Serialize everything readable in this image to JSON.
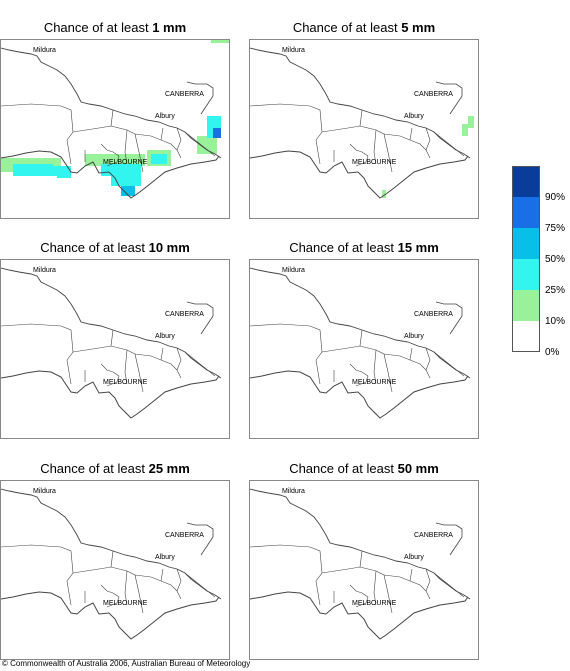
{
  "panels": [
    {
      "prefix": "Chance of at least ",
      "amount": "1 mm"
    },
    {
      "prefix": "Chance of at least ",
      "amount": "5 mm"
    },
    {
      "prefix": "Chance of at least ",
      "amount": "10 mm"
    },
    {
      "prefix": "Chance of at least ",
      "amount": "15 mm"
    },
    {
      "prefix": "Chance of at least ",
      "amount": "25 mm"
    },
    {
      "prefix": "Chance of at least ",
      "amount": "50 mm"
    }
  ],
  "places": {
    "mildura": "Mildura",
    "canberra": "CANBERRA",
    "albury": "Albury",
    "melbourne": "MELBOURNE"
  },
  "legend": {
    "ticks": [
      "90%",
      "75%",
      "50%",
      "25%",
      "10%",
      "0%"
    ],
    "colors": [
      "#0a3c9a",
      "#1a6ee6",
      "#08bfe8",
      "#33f5f0",
      "#99f299",
      "#ffffff"
    ]
  },
  "footer": "© Commonwealth of Australia 2006, Australian Bureau of Meteorology"
}
